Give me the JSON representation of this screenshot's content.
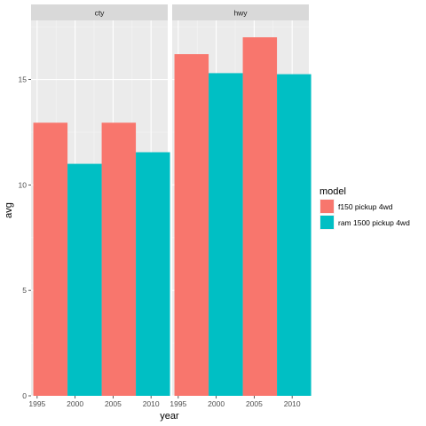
{
  "chart_data": {
    "type": "bar",
    "xlabel": "year",
    "ylabel": "avg",
    "ylim": [
      0,
      17.8
    ],
    "xlim": [
      1994.2,
      2012.2
    ],
    "y_ticks": [
      0,
      5,
      10,
      15
    ],
    "x_ticks": [
      1995,
      2000,
      2005,
      2010
    ],
    "bar_width_years": 4.5,
    "grid": true,
    "legend": {
      "title": "model",
      "position": "right"
    },
    "facets": [
      {
        "label": "cty",
        "series": [
          {
            "name": "f150 pickup 4wd",
            "x": [
              1996.75,
              2005.75
            ],
            "values": [
              12.95,
              12.95
            ]
          },
          {
            "name": "ram 1500 pickup 4wd",
            "x": [
              2001.25,
              2010.25
            ],
            "values": [
              11.0,
              11.55
            ]
          }
        ]
      },
      {
        "label": "hwy",
        "series": [
          {
            "name": "f150 pickup 4wd",
            "x": [
              1996.75,
              2005.75
            ],
            "values": [
              16.2,
              17.0
            ]
          },
          {
            "name": "ram 1500 pickup 4wd",
            "x": [
              2001.25,
              2010.25
            ],
            "values": [
              15.3,
              15.25
            ]
          }
        ]
      }
    ],
    "colors": {
      "f150 pickup 4wd": "#f8766d",
      "ram 1500 pickup 4wd": "#00bfc4"
    }
  }
}
